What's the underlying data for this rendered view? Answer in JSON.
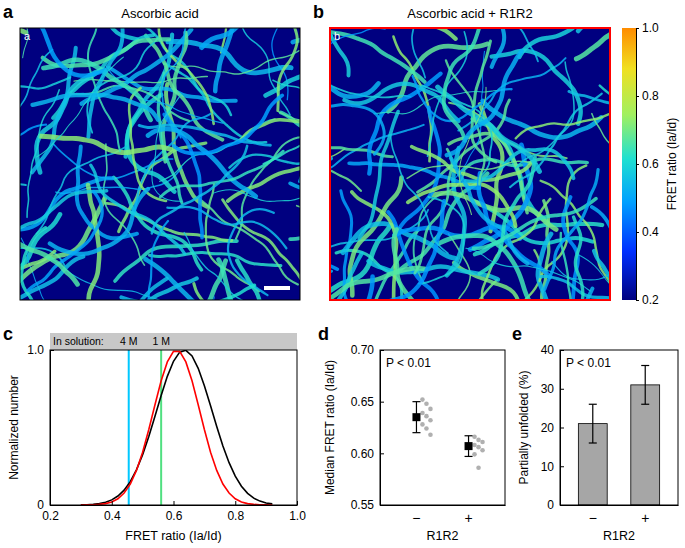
{
  "chart_data": [
    {
      "type": "image",
      "panel": "a",
      "title": "Ascorbic acid"
    },
    {
      "type": "image",
      "panel": "b",
      "title": "Ascorbic acid + R1R2",
      "color": "#ff0000",
      "colorbar": {
        "label": "FRET ratio (Ia/Id)",
        "range": [
          0.2,
          1.0
        ],
        "ticks": [
          0.2,
          0.4,
          0.6,
          0.8,
          {
            "value": 1.0,
            "label": "1.0"
          }
        ]
      }
    },
    {
      "type": "line",
      "panel": "c",
      "x": [
        0.3,
        0.32,
        0.34,
        0.36,
        0.38,
        0.4,
        0.42,
        0.44,
        0.46,
        0.48,
        0.5,
        0.52,
        0.54,
        0.56,
        0.58,
        0.6,
        0.62,
        0.64,
        0.66,
        0.68,
        0.7,
        0.72,
        0.74,
        0.76,
        0.78,
        0.8,
        0.82,
        0.84,
        0.86,
        0.88,
        0.9,
        0.92
      ],
      "series": [
        {
          "color": "#000000",
          "values": [
            0.001,
            0.002,
            0.005,
            0.009,
            0.018,
            0.033,
            0.058,
            0.096,
            0.151,
            0.227,
            0.325,
            0.442,
            0.573,
            0.707,
            0.83,
            0.927,
            0.986,
            0.998,
            0.962,
            0.882,
            0.77,
            0.64,
            0.506,
            0.381,
            0.273,
            0.186,
            0.121,
            0.075,
            0.044,
            0.025,
            0.013,
            0.007
          ]
        },
        {
          "color": "#ff0000",
          "values": [
            0,
            0.001,
            0.002,
            0.004,
            0.009,
            0.02,
            0.04,
            0.077,
            0.135,
            0.223,
            0.341,
            0.487,
            0.647,
            0.801,
            0.923,
            0.991,
            0.991,
            0.923,
            0.801,
            0.647,
            0.487,
            0.341,
            0.223,
            0.135,
            0.077,
            0.04,
            0.02,
            0.009,
            0.004,
            0.002,
            0.001,
            0
          ]
        }
      ],
      "xlim": [
        0.2,
        1.0
      ],
      "xticks": [
        0.2,
        0.4,
        0.6,
        0.8,
        {
          "value": 1.0,
          "label": "1.0"
        }
      ],
      "ylim": [
        0,
        1.0
      ],
      "yticks": [
        0,
        {
          "value": 1.0,
          "label": "1.0"
        }
      ],
      "x_label": "FRET ratio (Ia/Id)",
      "y_label": "Normalized number",
      "annotation": "In solution:",
      "reference_lines": [
        {
          "label": "4 M",
          "value": 0.455,
          "color": "#00c8ff"
        },
        {
          "label": "1 M",
          "value": 0.56,
          "color": "#50e080"
        }
      ]
    },
    {
      "type": "dot",
      "panel": "d",
      "categories": [
        "−",
        "+"
      ],
      "values": [
        0.635,
        0.607
      ],
      "errors": [
        0.015,
        0.01
      ],
      "points": [
        [
          0.652,
          0.648,
          0.643,
          0.639,
          0.636,
          0.632,
          0.628,
          0.624,
          0.618
        ],
        [
          0.616,
          0.613,
          0.611,
          0.608,
          0.606,
          0.603,
          0.599,
          0.586
        ]
      ],
      "ylim": [
        0.55,
        0.7
      ],
      "yticks": [
        0.55,
        {
          "value": 0.6,
          "label": "0.60"
        },
        0.65,
        {
          "value": 0.7,
          "label": "0.70"
        }
      ],
      "x_label": "R1R2",
      "y_label": "Median FRET ratio (Ia/Id)",
      "annotation": "P < 0.01",
      "color": "#000000",
      "marker": "square"
    },
    {
      "type": "bar",
      "panel": "e",
      "categories": [
        "−",
        "+"
      ],
      "values": [
        21,
        31
      ],
      "errors": [
        5,
        5
      ],
      "ylim": [
        0,
        40
      ],
      "yticks": [
        0,
        10,
        20,
        30,
        40
      ],
      "x_label": "R1R2",
      "y_label": "Partially unfolded (%)",
      "annotation": "P < 0.01",
      "color": "#a6a6a6"
    }
  ]
}
